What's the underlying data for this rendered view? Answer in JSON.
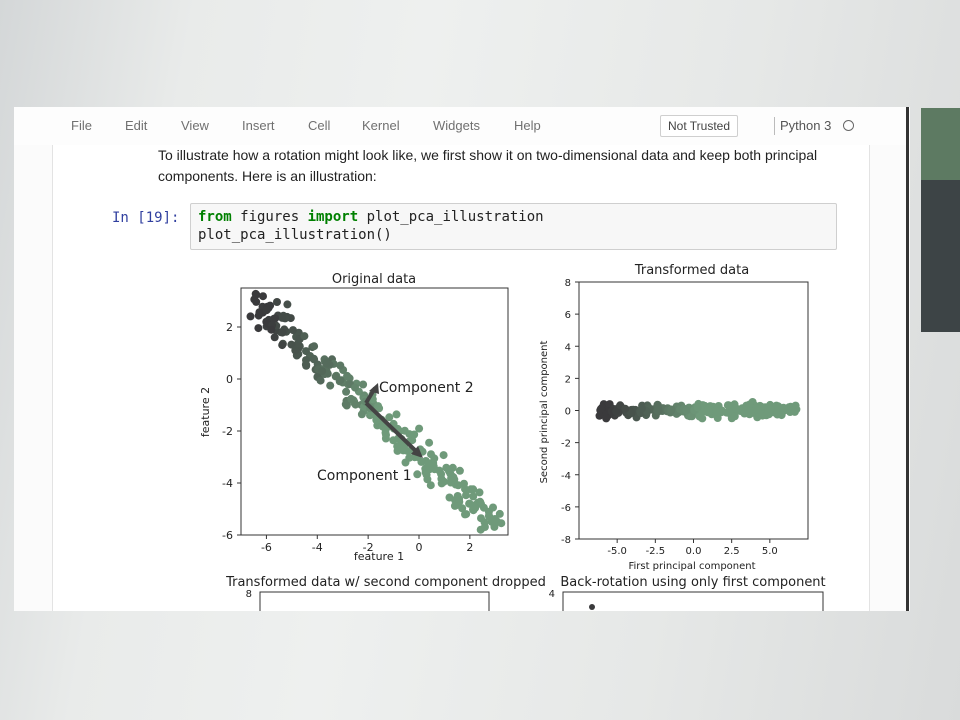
{
  "menu": [
    "File",
    "Edit",
    "View",
    "Insert",
    "Cell",
    "Kernel",
    "Widgets",
    "Help"
  ],
  "trust_label": "Not Trusted",
  "kernel_name": "Python 3",
  "markdown": "To illustrate how a rotation might look like, we first show it on two-dimensional data and keep both principal components. Here is an illustration:",
  "cell": {
    "prompt": "In [19]:",
    "line1": {
      "kw1": "from",
      "mod": " figures ",
      "kw2": "import",
      "name": " plot_pca_illustration"
    },
    "line2": "plot_pca_illustration()"
  },
  "plots": {
    "original": {
      "title": "Original data",
      "xlabel": "feature 1",
      "ylabel": "feature 2",
      "xticks": [
        "-6",
        "-4",
        "-2",
        "0",
        "2"
      ],
      "yticks": [
        "2",
        "0",
        "-2",
        "-4",
        "-6"
      ],
      "component1": "Component 1",
      "component2": "Component 2"
    },
    "transformed": {
      "title": "Transformed data",
      "xlabel": "First principal component",
      "ylabel": "Second principal component",
      "xticks": [
        "-5.0",
        "-2.5",
        "0.0",
        "2.5",
        "5.0"
      ],
      "yticks": [
        "8",
        "6",
        "4",
        "2",
        "0",
        "-2",
        "-4",
        "-6",
        "-8"
      ]
    },
    "dropped": {
      "title": "Transformed data w/ second component dropped",
      "ytick_top": "8"
    },
    "backrot": {
      "title": "Back-rotation using only first component",
      "ytick_top": "4"
    }
  },
  "colors": {
    "dark": "#3a3a3c",
    "green": "#6f9a7a",
    "axis": "#333333"
  },
  "chart_data": [
    {
      "type": "scatter",
      "title": "Original data",
      "xlabel": "feature 1",
      "ylabel": "feature 2",
      "xlim": [
        -7,
        3.5
      ],
      "ylim": [
        -6,
        3.5
      ],
      "note": "points colored by first principal component (dark to green); arrows show Component 1 and Component 2"
    },
    {
      "type": "scatter",
      "title": "Transformed data",
      "xlabel": "First principal component",
      "ylabel": "Second principal component",
      "xlim": [
        -7.5,
        7.5
      ],
      "ylim": [
        -8,
        8
      ]
    }
  ]
}
